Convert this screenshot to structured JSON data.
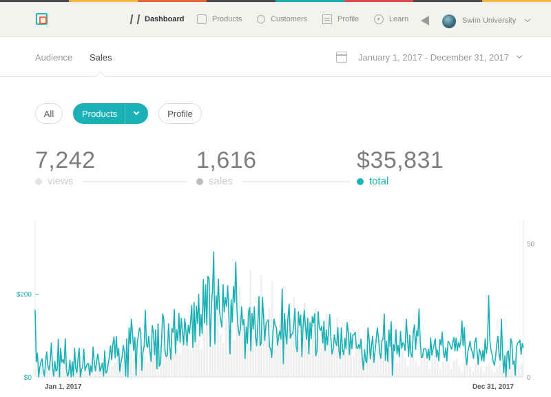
{
  "nav": {
    "items": [
      {
        "label": "Dashboard",
        "icon": "dashboard-icon"
      },
      {
        "label": "Products",
        "icon": "products-icon"
      },
      {
        "label": "Customers",
        "icon": "customers-icon"
      },
      {
        "label": "Profile",
        "icon": "profile-icon"
      },
      {
        "label": "Learn",
        "icon": "compass-icon"
      }
    ],
    "account_name": "Swim University"
  },
  "subnav": {
    "tabs": [
      {
        "label": "Audience"
      },
      {
        "label": "Sales"
      }
    ],
    "active_tab": "Sales",
    "date_range": "January 1, 2017 - December 31, 2017"
  },
  "filters": {
    "all": "All",
    "products": "Products",
    "profile": "Profile",
    "active": "Products"
  },
  "stats": {
    "views": {
      "value": "7,242",
      "label": "views"
    },
    "sales": {
      "value": "1,616",
      "label": "sales"
    },
    "total": {
      "value": "$35,831",
      "label": "total"
    }
  },
  "colors": {
    "accent": "#1ab0b5",
    "stripe": [
      "#e8673a",
      "#f3b640",
      "#1ab0b5",
      "#4a4a4a",
      "#e24a4a"
    ]
  },
  "chart_data": {
    "type": "line",
    "x_start": "Jan 1, 2017",
    "x_end": "Dec 31, 2017",
    "left_axis_ticks": [
      "$0",
      "$200"
    ],
    "right_axis_ticks": [
      "0",
      "50"
    ],
    "y_left_range": [
      0,
      360
    ],
    "y_right_range": [
      0,
      50
    ],
    "series": [
      {
        "color": "#1ab0b5",
        "axis": "left",
        "values": [
          154,
          35,
          55,
          0,
          22,
          34,
          42,
          14,
          2,
          35,
          58,
          26,
          16,
          37,
          78,
          23,
          2,
          36,
          14,
          16,
          87,
          0,
          66,
          34,
          40,
          31,
          88,
          16,
          2,
          10,
          39,
          0,
          35,
          2,
          66,
          21,
          10,
          43,
          66,
          0,
          19,
          22,
          64,
          14,
          24,
          30,
          31,
          4,
          26,
          11,
          69,
          34,
          14,
          36,
          53,
          36,
          13,
          22,
          32,
          2,
          61,
          9,
          13,
          30,
          48,
          72,
          40,
          74,
          92,
          44,
          93,
          48,
          66,
          13,
          33,
          47,
          73,
          56,
          2,
          88,
          0,
          113,
          76,
          133,
          99,
          61,
          91,
          4,
          77,
          95,
          113,
          104,
          15,
          56,
          71,
          153,
          74,
          68,
          94,
          60,
          36,
          118,
          101,
          51,
          109,
          19,
          122,
          25,
          31,
          86,
          145,
          132,
          61,
          47,
          50,
          122,
          72,
          40,
          112,
          103,
          155,
          55,
          109,
          83,
          146,
          79,
          135,
          104,
          74,
          134,
          109,
          73,
          119,
          100,
          129,
          164,
          68,
          171,
          81,
          163,
          123,
          190,
          94,
          144,
          100,
          224,
          124,
          212,
          120,
          231,
          226,
          71,
          166,
          202,
          287,
          76,
          187,
          155,
          225,
          150,
          129,
          115,
          212,
          149,
          182,
          162,
          210,
          150,
          53,
          178,
          126,
          208,
          172,
          264,
          156,
          113,
          96,
          110,
          161,
          120,
          132,
          43,
          115,
          77,
          149,
          160,
          60,
          146,
          110,
          161,
          92,
          72,
          120,
          185,
          72,
          78,
          183,
          135,
          84,
          121,
          128,
          131,
          70,
          64,
          45,
          102,
          133,
          118,
          114,
          73,
          94,
          106,
          87,
          202,
          31,
          146,
          101,
          76,
          137,
          167,
          89,
          98,
          99,
          121,
          157,
          71,
          58,
          150,
          118,
          142,
          47,
          114,
          153,
          117,
          86,
          135,
          53,
          125,
          88,
          139,
          124,
          145,
          49,
          60,
          150,
          114,
          107,
          116,
          78,
          128,
          61,
          108,
          74,
          106,
          144,
          88,
          53,
          65,
          97,
          80,
          72,
          114,
          59,
          43,
          113,
          63,
          51,
          89,
          65,
          125,
          102,
          51,
          101,
          65,
          97,
          97,
          103,
          67,
          66,
          74,
          65,
          87,
          45,
          17,
          63,
          38,
          33,
          113,
          86,
          42,
          72,
          94,
          34,
          58,
          84,
          113,
          90,
          56,
          43,
          83,
          87,
          145,
          38,
          82,
          36,
          108,
          70,
          127,
          4,
          75,
          60,
          109,
          53,
          73,
          47,
          105,
          66,
          79,
          76,
          61,
          133,
          90,
          47,
          96,
          52,
          46,
          100,
          120,
          63,
          106,
          94,
          156,
          81,
          45,
          46,
          65,
          65,
          64,
          43,
          64,
          39,
          90,
          50,
          63,
          74,
          88,
          46,
          62,
          37,
          86,
          73,
          103,
          56,
          45,
          67,
          37,
          82,
          79,
          71,
          64,
          78,
          91,
          60,
          89,
          60,
          79,
          68,
          84,
          129,
          72,
          114,
          56,
          28,
          58,
          69,
          82,
          64,
          57,
          43,
          78,
          90,
          60,
          29,
          64,
          56,
          38,
          61,
          36,
          88,
          54,
          77,
          187,
          83,
          63,
          51,
          35,
          27,
          47,
          76,
          94,
          52,
          38,
          133,
          54,
          10,
          49,
          0,
          57,
          60,
          19,
          88,
          80,
          29,
          37,
          4,
          69,
          78,
          80,
          85,
          52,
          77,
          67
        ]
      },
      {
        "color": "#e2e2e2",
        "axis": "right",
        "values": [
          3,
          2,
          5,
          1,
          4,
          6,
          2,
          3,
          7,
          2,
          4,
          5,
          3,
          2,
          6,
          4,
          8,
          3,
          2,
          5,
          6,
          3,
          4,
          7,
          5,
          3,
          6,
          8,
          4,
          5,
          7,
          9,
          6,
          4,
          8,
          10,
          7,
          5,
          9,
          12,
          8,
          6,
          10,
          14,
          9,
          7,
          12,
          16,
          10,
          8,
          14,
          18,
          11,
          9,
          15,
          20,
          12,
          10,
          16,
          22,
          14,
          11,
          18,
          24,
          15,
          12,
          20,
          26,
          16,
          13,
          22,
          30,
          18,
          14,
          24,
          34,
          20,
          16,
          26,
          40,
          22,
          18,
          28,
          38,
          24,
          20,
          26,
          36,
          22,
          18,
          24,
          34,
          20,
          16,
          22,
          30,
          18,
          14,
          20,
          28,
          16,
          12,
          18,
          26,
          15,
          11,
          16,
          24,
          14,
          10,
          15,
          22,
          13,
          9,
          14,
          20,
          12,
          8,
          13,
          18,
          11,
          7,
          12,
          16,
          10,
          6,
          11,
          14,
          9,
          5,
          10,
          12,
          8,
          5,
          9,
          11,
          7,
          4,
          8,
          10,
          6,
          4,
          7,
          9,
          6,
          3,
          7,
          8,
          5,
          3,
          6,
          7,
          5,
          3,
          6,
          7,
          4,
          2,
          5,
          6,
          4,
          2,
          5,
          6,
          4,
          2,
          4,
          5,
          3,
          2,
          4,
          5,
          3,
          2,
          4,
          5,
          3,
          2,
          4,
          5
        ]
      }
    ]
  }
}
